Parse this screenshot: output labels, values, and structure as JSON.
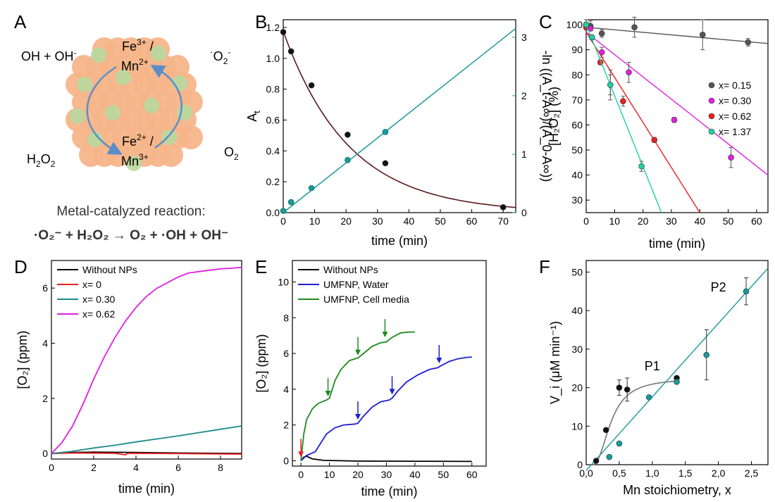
{
  "panel_labels": [
    "A",
    "B",
    "C",
    "D",
    "E",
    "F"
  ],
  "schematic": {
    "top_left": "OH + OH",
    "top_left_sup": "-",
    "top_right": "O",
    "top_right_sub": "2",
    "top_right_sup": "-",
    "top_right_dot": "·",
    "bottom_left": "H",
    "bottom_left_sub": "2",
    "bottom_left_o": "O",
    "bottom_left_sub2": "2",
    "bottom_right": "O",
    "bottom_right_sub": "2",
    "fe3_line1": "Fe",
    "fe3_sup": "3+",
    "fe3_slash": " /",
    "mn2_line2": "Mn",
    "mn2_sup": "2+",
    "fe2_line1": "Fe",
    "fe2_sup": "2+",
    "fe2_slash": " /",
    "mn3_line2": "Mn",
    "mn3_sup": "3+",
    "reaction_title": "Metal-catalyzed reaction:",
    "reaction_eq": "·O₂⁻ + H₂O₂ → O₂ + ·OH + OH⁻",
    "colors": {
      "particle": "#f6b58a",
      "patch": "#b8d9a0",
      "arrow": "#5b8ec9"
    }
  },
  "chart_data": [
    {
      "panel": "B",
      "type": "scatter+line",
      "xlabel": "time  (min)",
      "ylabel_left": "A_t",
      "ylabel_right": "-ln ((A_t-A∞)/(A_0-A∞))",
      "xlim": [
        0,
        74
      ],
      "xticks": [
        0,
        10,
        20,
        30,
        40,
        50,
        60,
        70
      ],
      "ylim_left": [
        0,
        1.25
      ],
      "yticks_left": [
        0.0,
        0.2,
        0.4,
        0.6,
        0.8,
        1.0,
        1.2
      ],
      "ylim_right": [
        0,
        3.3
      ],
      "yticks_right": [
        0,
        1,
        2,
        3
      ],
      "series": [
        {
          "axis": "left",
          "color": "#000000",
          "points": [
            [
              0,
              1.17
            ],
            [
              2.5,
              1.045
            ],
            [
              9,
              0.825
            ],
            [
              20.5,
              0.505
            ],
            [
              32.5,
              0.32
            ],
            [
              70,
              0.035
            ]
          ]
        },
        {
          "axis": "right",
          "color": "#1a9a9a",
          "points": [
            [
              0,
              0.03
            ],
            [
              2.5,
              0.18
            ],
            [
              9,
              0.42
            ],
            [
              20.5,
              0.9
            ],
            [
              32.5,
              1.38
            ]
          ],
          "fit": [
            [
              0,
              0.0
            ],
            [
              74,
              3.15
            ]
          ]
        }
      ],
      "fit_left": {
        "A0": 1.175,
        "k": 0.048,
        "color": "#5a1a1a"
      }
    },
    {
      "panel": "C",
      "type": "scatter+line",
      "xlabel": "time (min)",
      "ylabel": "[H₂O₂] (%)",
      "xlim": [
        0,
        64
      ],
      "xticks": [
        0,
        10,
        20,
        30,
        40,
        50,
        60
      ],
      "ylim": [
        25,
        102
      ],
      "yticks": [
        30,
        40,
        50,
        60,
        70,
        80,
        90,
        100
      ],
      "legend_position": "right",
      "series": [
        {
          "name": "x= 0.15",
          "color": "#555555",
          "points": [
            [
              0,
              100
            ],
            [
              1.5,
              99.5
            ],
            [
              5.5,
              96.5
            ],
            [
              17,
              99
            ],
            [
              41,
              96
            ],
            [
              57,
              93
            ]
          ],
          "errors": [
            2,
            2,
            1.5,
            4,
            6,
            1.5
          ],
          "fit": [
            [
              0,
              99
            ],
            [
              64,
              92.5
            ]
          ]
        },
        {
          "name": "x= 0.30",
          "color": "#e020e0",
          "points": [
            [
              0,
              100
            ],
            [
              1.5,
              98.5
            ],
            [
              5.5,
              89
            ],
            [
              15,
              81
            ],
            [
              31,
              62
            ],
            [
              51,
              47
            ]
          ],
          "errors": [
            1,
            1,
            2,
            4,
            1,
            4
          ],
          "fit": [
            [
              0,
              97
            ],
            [
              64,
              40
            ]
          ]
        },
        {
          "name": "x= 0.62",
          "color": "#e82020",
          "points": [
            [
              0,
              99
            ],
            [
              5,
              85
            ],
            [
              8.5,
              76
            ],
            [
              13,
              69.5
            ],
            [
              24,
              54
            ]
          ],
          "errors": [
            1,
            1,
            4,
            2,
            1
          ],
          "fit": [
            [
              0,
              97
            ],
            [
              40,
              25
            ]
          ]
        },
        {
          "name": "x= 1.37",
          "color": "#20d0a0",
          "points": [
            [
              0,
              100
            ],
            [
              2,
              95
            ],
            [
              8.5,
              76
            ],
            [
              19.5,
              43.5
            ]
          ],
          "errors": [
            1,
            1,
            6,
            2
          ],
          "fit": [
            [
              0,
              100
            ],
            [
              26.5,
              25
            ]
          ]
        }
      ]
    },
    {
      "panel": "D",
      "type": "line",
      "xlabel": "time  (min)",
      "ylabel": "[O₂]  (ppm)",
      "xlim": [
        0,
        9
      ],
      "xticks": [
        0,
        2,
        4,
        6,
        8
      ],
      "ylim": [
        -0.2,
        7.0
      ],
      "yticks": [
        0,
        2,
        4,
        6
      ],
      "legend_position": "top-left",
      "series": [
        {
          "name": "Without NPs",
          "color": "#000000",
          "points": [
            [
              0,
              0
            ],
            [
              1,
              0.04
            ],
            [
              2,
              0.05
            ],
            [
              4,
              0.04
            ],
            [
              6,
              0.02
            ],
            [
              9,
              0.0
            ]
          ]
        },
        {
          "name": "x= 0",
          "color": "#e82020",
          "points": [
            [
              0,
              0
            ],
            [
              1,
              0.02
            ],
            [
              3,
              0.01
            ],
            [
              3.5,
              -0.05
            ],
            [
              3.6,
              0.01
            ],
            [
              6,
              0.0
            ],
            [
              9,
              -0.02
            ]
          ]
        },
        {
          "name": "x= 0.30",
          "color": "#1a8a8a",
          "points": [
            [
              0,
              0
            ],
            [
              1,
              0.08
            ],
            [
              2,
              0.2
            ],
            [
              3,
              0.3
            ],
            [
              4,
              0.42
            ],
            [
              5,
              0.53
            ],
            [
              6,
              0.64
            ],
            [
              7,
              0.76
            ],
            [
              8,
              0.88
            ],
            [
              9,
              1.0
            ]
          ]
        },
        {
          "name": "x= 0.62",
          "color": "#e020e0",
          "points": [
            [
              0,
              0
            ],
            [
              0.5,
              0.4
            ],
            [
              1,
              1.0
            ],
            [
              1.5,
              1.8
            ],
            [
              2,
              2.7
            ],
            [
              2.5,
              3.5
            ],
            [
              3,
              4.2
            ],
            [
              3.5,
              4.8
            ],
            [
              4,
              5.3
            ],
            [
              4.5,
              5.7
            ],
            [
              5,
              6.0
            ],
            [
              5.5,
              6.2
            ],
            [
              6,
              6.4
            ],
            [
              6.5,
              6.55
            ],
            [
              7,
              6.6
            ],
            [
              7.5,
              6.65
            ],
            [
              8,
              6.7
            ],
            [
              8.5,
              6.72
            ],
            [
              9,
              6.75
            ]
          ]
        }
      ]
    },
    {
      "panel": "E",
      "type": "line",
      "xlabel": "time  (min)",
      "ylabel": "[O₂]  (ppm)",
      "xlim": [
        -3,
        65
      ],
      "xticks": [
        0,
        10,
        20,
        30,
        40,
        50,
        60
      ],
      "ylim": [
        -0.3,
        11.2
      ],
      "yticks": [
        0,
        2,
        4,
        6,
        8,
        10
      ],
      "legend_position": "top-left",
      "series": [
        {
          "name": "Without NPs",
          "color": "#000000",
          "points": [
            [
              0,
              0
            ],
            [
              1,
              0.2
            ],
            [
              2,
              0.25
            ],
            [
              4,
              0.1
            ],
            [
              8,
              0.02
            ],
            [
              20,
              -0.02
            ],
            [
              40,
              -0.03
            ],
            [
              60,
              -0.04
            ]
          ]
        },
        {
          "name": "UMFNP, Water",
          "color": "#1f1fd0",
          "points": [
            [
              0,
              0
            ],
            [
              2,
              0.3
            ],
            [
              5,
              0.5
            ],
            [
              7,
              1.0
            ],
            [
              9,
              1.5
            ],
            [
              12,
              1.85
            ],
            [
              15,
              2.0
            ],
            [
              19,
              2.05
            ],
            [
              20,
              2.1
            ],
            [
              22,
              2.5
            ],
            [
              25,
              3.0
            ],
            [
              28,
              3.3
            ],
            [
              31,
              3.4
            ],
            [
              32,
              3.5
            ],
            [
              34,
              3.9
            ],
            [
              37,
              4.4
            ],
            [
              41,
              4.8
            ],
            [
              45,
              5.1
            ],
            [
              48,
              5.2
            ],
            [
              49,
              5.3
            ],
            [
              52,
              5.55
            ],
            [
              55,
              5.7
            ],
            [
              58,
              5.78
            ],
            [
              60,
              5.8
            ]
          ]
        },
        {
          "name": "UMFNP, Cell media",
          "color": "#1f8a1f",
          "points": [
            [
              0,
              0
            ],
            [
              1,
              1.5
            ],
            [
              2,
              2.3
            ],
            [
              4,
              2.9
            ],
            [
              6,
              3.2
            ],
            [
              9,
              3.4
            ],
            [
              10,
              3.5
            ],
            [
              12,
              4.5
            ],
            [
              14,
              5.1
            ],
            [
              17,
              5.6
            ],
            [
              20,
              5.75
            ],
            [
              22,
              6.0
            ],
            [
              25,
              6.4
            ],
            [
              28,
              6.6
            ],
            [
              30,
              6.65
            ],
            [
              32,
              6.9
            ],
            [
              35,
              7.15
            ],
            [
              38,
              7.2
            ],
            [
              40,
              7.2
            ]
          ]
        }
      ],
      "arrows": [
        {
          "x": 0,
          "y_tip": 0.2,
          "color": "#e82020"
        },
        {
          "x": 9.5,
          "y_tip": 3.6,
          "color": "#1f8a1f"
        },
        {
          "x": 20,
          "y_tip": 5.9,
          "color": "#1f8a1f"
        },
        {
          "x": 29.5,
          "y_tip": 6.9,
          "color": "#1f8a1f"
        },
        {
          "x": 20,
          "y_tip": 2.3,
          "color": "#1f1fd0"
        },
        {
          "x": 32,
          "y_tip": 3.7,
          "color": "#1f1fd0"
        },
        {
          "x": 48.5,
          "y_tip": 5.45,
          "color": "#1f1fd0"
        }
      ]
    },
    {
      "panel": "F",
      "type": "scatter+line",
      "xlabel": "Mn stoichiometry, x",
      "ylabel": "V_i  (μM min⁻¹)",
      "xlim": [
        0,
        2.75
      ],
      "xticks": [
        "0,0",
        "0,5",
        "1,0",
        "1,5",
        "2,0",
        "2,5"
      ],
      "xtick_values": [
        0,
        0.5,
        1.0,
        1.5,
        2.0,
        2.5
      ],
      "ylim": [
        0,
        53
      ],
      "yticks": [
        0,
        10,
        20,
        30,
        40,
        50
      ],
      "series": [
        {
          "name": "P1",
          "color": "#111111",
          "line_color": "#777777",
          "points": [
            [
              0.15,
              1
            ],
            [
              0.3,
              9
            ],
            [
              0.5,
              20
            ],
            [
              0.62,
              19.5
            ],
            [
              1.37,
              22.5
            ]
          ],
          "errors": [
            0,
            0,
            2,
            3,
            0.5
          ]
        },
        {
          "name": "P2",
          "color": "#1a9a9a",
          "line_color": "#1a9a9a",
          "points": [
            [
              0.35,
              2
            ],
            [
              0.5,
              5.5
            ],
            [
              0.95,
              17.5
            ],
            [
              1.37,
              21.5
            ],
            [
              1.82,
              28.5
            ],
            [
              2.42,
              45
            ]
          ],
          "errors": [
            0,
            0,
            0,
            0,
            6.5,
            3.5
          ],
          "fit": [
            [
              0,
              -1.5
            ],
            [
              2.75,
              51
            ]
          ]
        }
      ],
      "labels": [
        {
          "text": "P1",
          "x": 1.0,
          "y": 24.5
        },
        {
          "text": "P2",
          "x": 2.0,
          "y": 45
        }
      ]
    }
  ]
}
